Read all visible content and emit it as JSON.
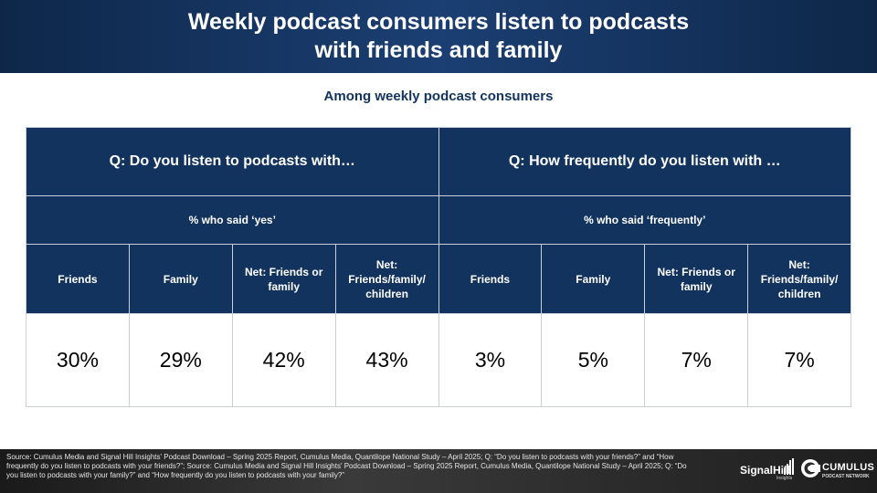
{
  "slide": {
    "title_line1": "Weekly podcast consumers listen to podcasts",
    "title_line2": "with friends and family",
    "subtitle": "Among weekly podcast consumers"
  },
  "table": {
    "questions": [
      "Q: Do you listen to podcasts with…",
      "Q: How frequently do you listen with …"
    ],
    "measures": [
      "% who said ‘yes’",
      "% who said ‘frequently’"
    ],
    "columns": [
      "Friends",
      "Family",
      "Net: Friends or family",
      "Net: Friends/family/ children",
      "Friends",
      "Family",
      "Net: Friends or family",
      "Net: Friends/family/ children"
    ],
    "values": [
      "30%",
      "29%",
      "42%",
      "43%",
      "3%",
      "5%",
      "7%",
      "7%"
    ]
  },
  "footer": {
    "source": "Source: Cumulus Media and Signal Hill Insights' Podcast Download – Spring 2025 Report, Cumulus Media, Quantilope National Study – April 2025; Q: “Do you listen to podcasts with your friends?” and “How frequently do you listen to podcasts with your friends?”; Source: Cumulus Media and Signal Hill Insights' Podcast Download – Spring 2025 Report, Cumulus Media, Quantilope National Study – April 2025; Q: “Do you listen to podcasts with your family?” and “How frequently do you listen to podcasts with your family?”",
    "logo_signalhill_word": "SignalHill",
    "logo_signalhill_sub": "Insights",
    "logo_cumulus_word": "CUMULUS",
    "logo_cumulus_sub": "PODCAST NETWORK"
  },
  "colors": {
    "header_navy": "#12335e",
    "accent_navy": "#1b3f73",
    "text_on_dark": "#ffffff"
  }
}
